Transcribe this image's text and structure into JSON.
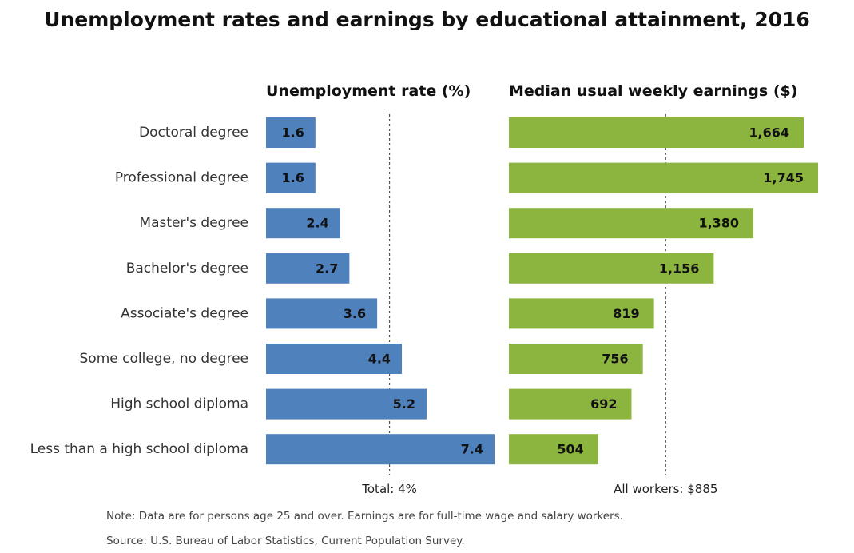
{
  "title": "Unemployment rates and earnings by educational attainment, 2016",
  "note": "Note: Data are for persons age 25 and over. Earnings are for full-time wage and salary workers.",
  "source": "Source: U.S. Bureau of Labor Statistics, Current Population Survey.",
  "colors": {
    "unemployment_bar": "#4f81bd",
    "earnings_bar": "#8cb53f",
    "reference_line": "#555555"
  },
  "chart_data": [
    {
      "type": "bar",
      "orientation": "horizontal",
      "title": "Unemployment rate (%)",
      "categories": [
        "Doctoral degree",
        "Professional degree",
        "Master's degree",
        "Bachelor's degree",
        "Associate's degree",
        "Some college, no degree",
        "High school diploma",
        "Less than a high school diploma"
      ],
      "values": [
        1.6,
        1.6,
        2.4,
        2.7,
        3.6,
        4.4,
        5.2,
        7.4
      ],
      "value_labels": [
        "1.6",
        "1.6",
        "2.4",
        "2.7",
        "3.6",
        "4.4",
        "5.2",
        "7.4"
      ],
      "xlim": [
        0,
        7.4
      ],
      "reference_line": {
        "value": 4,
        "label": "Total: 4%"
      },
      "grid": false,
      "legend": "none"
    },
    {
      "type": "bar",
      "orientation": "horizontal",
      "title": "Median usual weekly earnings ($)",
      "categories": [
        "Doctoral degree",
        "Professional degree",
        "Master's degree",
        "Bachelor's degree",
        "Associate's degree",
        "Some college, no degree",
        "High school diploma",
        "Less than a high school diploma"
      ],
      "values": [
        1664,
        1745,
        1380,
        1156,
        819,
        756,
        692,
        504
      ],
      "value_labels": [
        "1,664",
        "1,745",
        "1,380",
        "1,156",
        "819",
        "756",
        "692",
        "504"
      ],
      "xlim": [
        0,
        1745
      ],
      "reference_line": {
        "value": 885,
        "label": "All workers: $885"
      },
      "grid": false,
      "legend": "none"
    }
  ]
}
